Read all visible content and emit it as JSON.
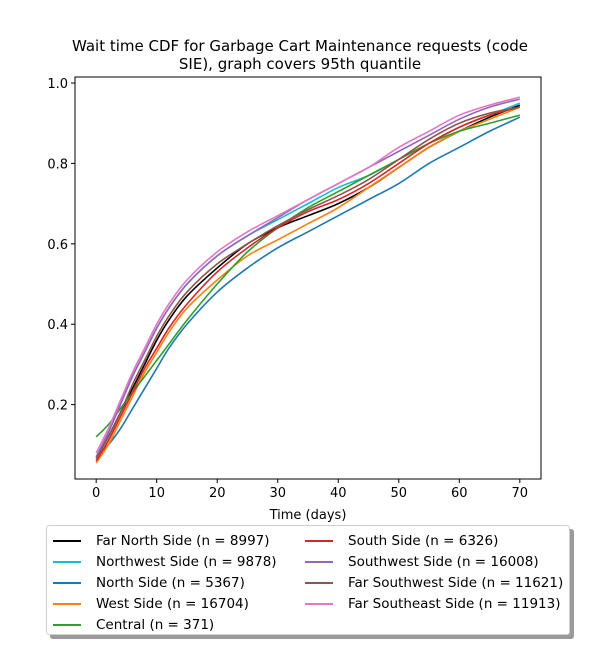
{
  "chart_data": {
    "type": "line",
    "title_line1": "Wait time CDF for Garbage Cart Maintenance  requests (code",
    "title_line2": "SIE), graph covers 95th quantile",
    "xlabel": "Time (days)",
    "ylabel": "",
    "xlim": [
      -3.5,
      73.5
    ],
    "ylim": [
      0.015,
      1.015
    ],
    "xticks": [
      0,
      10,
      20,
      30,
      40,
      50,
      60,
      70
    ],
    "yticks": [
      0.2,
      0.4,
      0.6,
      0.8,
      1.0
    ],
    "ytick_labels": [
      "0.2",
      "0.4",
      "0.6",
      "0.8",
      "1.0"
    ],
    "x": [
      0,
      2,
      4,
      6,
      8,
      10,
      12,
      15,
      20,
      25,
      30,
      35,
      40,
      45,
      50,
      55,
      60,
      65,
      70
    ],
    "series": [
      {
        "name": "Far North Side (n = 8997)",
        "color": "#000000",
        "values": [
          0.07,
          0.12,
          0.18,
          0.24,
          0.3,
          0.36,
          0.41,
          0.47,
          0.54,
          0.6,
          0.64,
          0.67,
          0.7,
          0.74,
          0.79,
          0.84,
          0.88,
          0.915,
          0.945
        ]
      },
      {
        "name": "Northwest Side (n = 9878)",
        "color": "#17becf",
        "values": [
          0.07,
          0.13,
          0.2,
          0.27,
          0.33,
          0.39,
          0.44,
          0.5,
          0.57,
          0.62,
          0.66,
          0.7,
          0.74,
          0.77,
          0.81,
          0.85,
          0.89,
          0.92,
          0.95
        ]
      },
      {
        "name": "North Side (n = 5367)",
        "color": "#1f77b4",
        "values": [
          0.07,
          0.1,
          0.14,
          0.19,
          0.24,
          0.29,
          0.34,
          0.4,
          0.48,
          0.54,
          0.59,
          0.63,
          0.67,
          0.71,
          0.75,
          0.8,
          0.84,
          0.88,
          0.915
        ]
      },
      {
        "name": "West Side (n = 16704)",
        "color": "#ff7f0e",
        "values": [
          0.055,
          0.1,
          0.16,
          0.22,
          0.28,
          0.33,
          0.38,
          0.44,
          0.51,
          0.57,
          0.61,
          0.65,
          0.69,
          0.74,
          0.79,
          0.84,
          0.88,
          0.91,
          0.94
        ]
      },
      {
        "name": "Central (n = 371)",
        "color": "#2ca02c",
        "values": [
          0.12,
          0.15,
          0.19,
          0.23,
          0.27,
          0.31,
          0.35,
          0.41,
          0.5,
          0.58,
          0.64,
          0.69,
          0.73,
          0.77,
          0.81,
          0.85,
          0.88,
          0.9,
          0.92
        ]
      },
      {
        "name": "South Side (n = 6326)",
        "color": "#d62728",
        "values": [
          0.06,
          0.11,
          0.17,
          0.23,
          0.29,
          0.34,
          0.39,
          0.45,
          0.53,
          0.59,
          0.64,
          0.68,
          0.71,
          0.75,
          0.8,
          0.85,
          0.89,
          0.92,
          0.94
        ]
      },
      {
        "name": "Southwest Side (n = 16008)",
        "color": "#9467bd",
        "values": [
          0.07,
          0.13,
          0.2,
          0.27,
          0.33,
          0.39,
          0.44,
          0.5,
          0.57,
          0.62,
          0.665,
          0.71,
          0.75,
          0.79,
          0.83,
          0.87,
          0.91,
          0.94,
          0.96
        ]
      },
      {
        "name": "Far Southwest Side (n = 11621)",
        "color": "#8c564b",
        "values": [
          0.065,
          0.12,
          0.18,
          0.25,
          0.31,
          0.37,
          0.42,
          0.48,
          0.55,
          0.6,
          0.645,
          0.685,
          0.72,
          0.76,
          0.81,
          0.86,
          0.9,
          0.925,
          0.94
        ]
      },
      {
        "name": "Far Southeast Side (n = 11913)",
        "color": "#e377c2",
        "values": [
          0.08,
          0.14,
          0.21,
          0.28,
          0.34,
          0.4,
          0.45,
          0.51,
          0.58,
          0.63,
          0.67,
          0.71,
          0.75,
          0.79,
          0.84,
          0.88,
          0.92,
          0.945,
          0.965
        ]
      }
    ],
    "legend_placement": "below",
    "legend_columns": [
      [
        0,
        1,
        2,
        3,
        4
      ],
      [
        5,
        6,
        7,
        8
      ]
    ],
    "grid": false
  }
}
